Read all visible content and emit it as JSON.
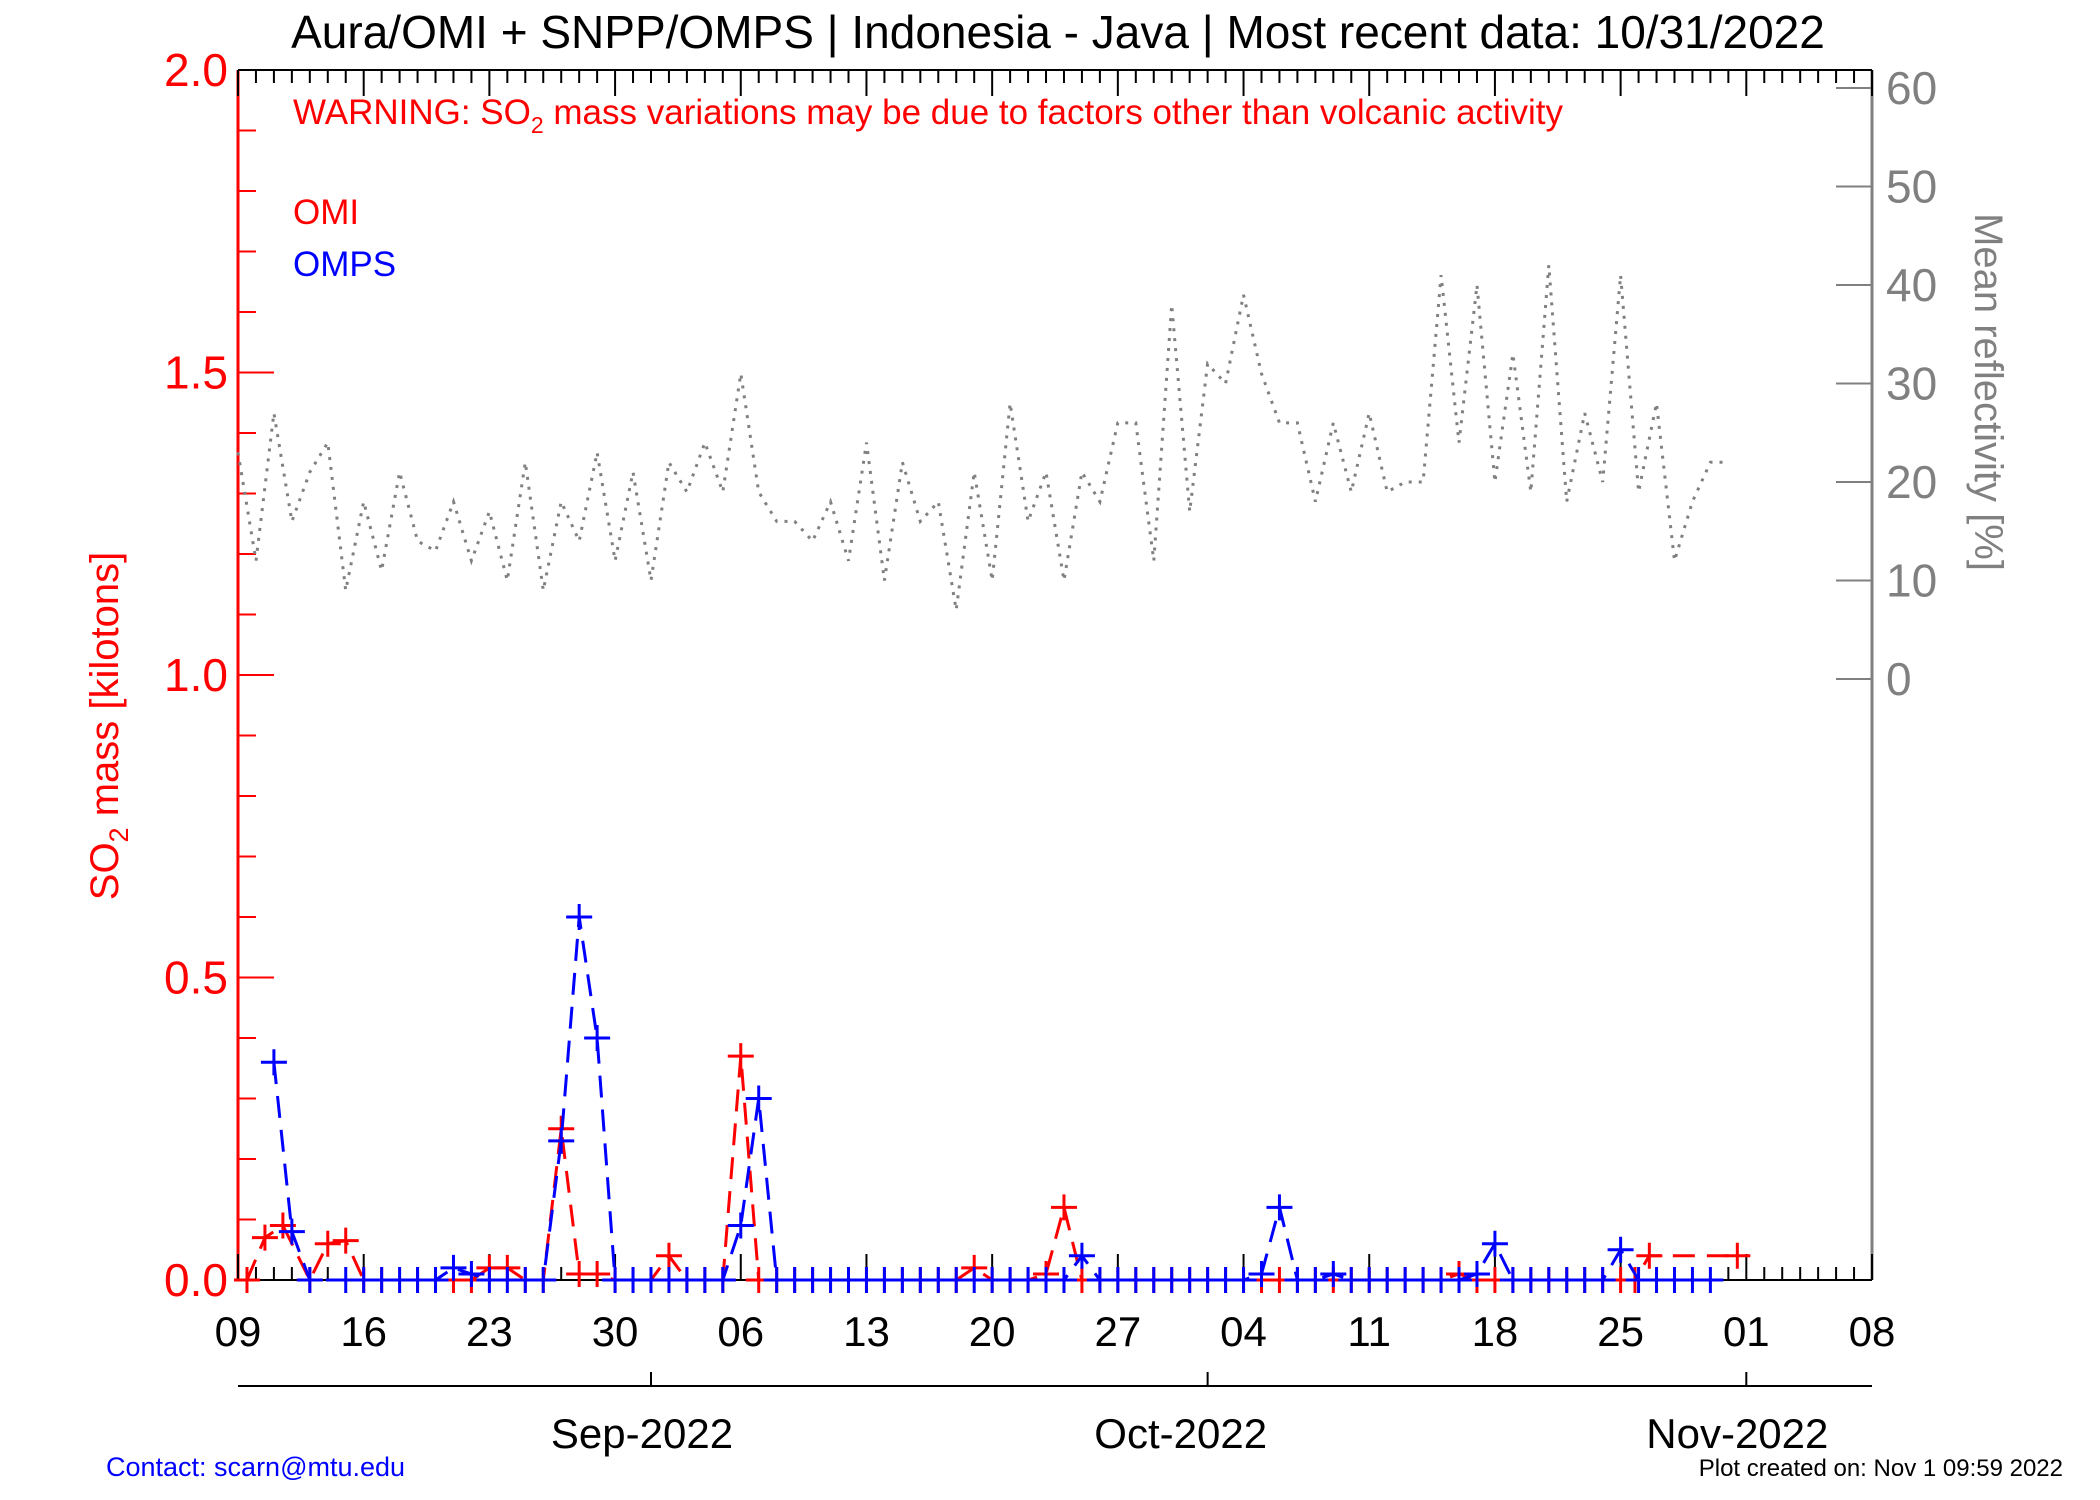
{
  "chart_data": {
    "type": "line",
    "title": "Aura/OMI + SNPP/OMPS | Indonesia - Java | Most recent data: 10/31/2022",
    "warning": "WARNING: SO2 mass variations may be due to factors other than volcanic activity",
    "warning_parts": {
      "pre": "WARNING: SO",
      "sub": "2",
      "post": " mass variations may be due to factors other than volcanic activity"
    },
    "ylabel": "SO2 mass [kilotons]",
    "ylabel_parts": {
      "pre": "SO",
      "sub": "2",
      "post": " mass [kilotons]"
    },
    "y2label": "Mean reflectivity [%]",
    "legend": [
      {
        "name": "OMI",
        "color": "#ff0000"
      },
      {
        "name": "OMPS",
        "color": "#0000ff"
      }
    ],
    "ylim": [
      0,
      2.0
    ],
    "y_ticks": [
      "0.0",
      "0.5",
      "1.0",
      "1.5",
      "2.0"
    ],
    "y_tick_values": [
      0,
      0.5,
      1.0,
      1.5,
      2.0
    ],
    "y2lim": [
      0,
      60
    ],
    "y2_ticks": [
      "0",
      "10",
      "20",
      "30",
      "40",
      "50",
      "60"
    ],
    "y2_tick_values": [
      0,
      10,
      20,
      30,
      40,
      50,
      60
    ],
    "xlim": [
      "2022-08-09",
      "2022-11-08"
    ],
    "x_tick_labels": [
      "09",
      "16",
      "23",
      "30",
      "06",
      "13",
      "20",
      "27",
      "04",
      "11",
      "18",
      "25",
      "01",
      "08"
    ],
    "x_tick_days": [
      0,
      7,
      14,
      21,
      28,
      35,
      42,
      49,
      56,
      63,
      70,
      77,
      84,
      91
    ],
    "month_labels": [
      "Sep-2022",
      "Oct-2022",
      "Nov-2022"
    ],
    "month_days": [
      22.5,
      52.5,
      83.5
    ],
    "series": [
      {
        "name": "OMI",
        "color": "#ff0000",
        "style": "dashed",
        "marker": "+",
        "x": [
          0.5,
          1.5,
          2.5,
          4,
          5,
          6,
          7,
          8,
          10,
          11,
          12,
          13,
          14,
          15,
          16,
          17,
          18,
          19,
          20,
          21,
          22,
          23,
          24,
          25,
          26,
          27,
          28,
          29,
          30,
          31,
          32,
          33,
          34,
          35,
          36,
          37,
          38,
          39,
          40,
          41,
          42,
          43,
          44,
          45,
          46,
          47,
          48,
          49,
          50,
          51,
          52,
          53,
          54,
          55,
          56,
          57,
          58,
          59,
          60,
          61,
          62,
          63,
          64,
          65,
          66,
          67,
          68,
          69,
          70,
          71,
          72,
          73,
          74,
          75,
          76,
          77,
          77.8,
          78.6,
          83.5
        ],
        "y": [
          0.0,
          0.07,
          0.09,
          0.0,
          0.06,
          0.065,
          0.0,
          0.0,
          0.0,
          0.0,
          0.0,
          0.0,
          0.02,
          0.02,
          0.0,
          0.0,
          0.25,
          0.01,
          0.01,
          0.0,
          0.0,
          0.0,
          0.04,
          0.0,
          0.0,
          0.0,
          0.37,
          0.0,
          0.0,
          0.0,
          0.0,
          0.0,
          0.0,
          0.0,
          0.0,
          0.0,
          0.0,
          0.0,
          0.0,
          0.02,
          0.0,
          0.0,
          0.0,
          0.01,
          0.12,
          0.0,
          0.0,
          0.0,
          0.0,
          0.0,
          0.0,
          0.0,
          0.0,
          0.0,
          0.0,
          0.0,
          0.0,
          0.0,
          0.0,
          0.0,
          0.0,
          0.0,
          0.0,
          0.0,
          0.0,
          0.0,
          0.01,
          0.0,
          0.0,
          0.0,
          0.0,
          0.0,
          0.0,
          0.0,
          0.0,
          0.0,
          0.0,
          0.04,
          0.04
        ]
      },
      {
        "name": "OMPS",
        "color": "#0000ff",
        "style": "dashed",
        "marker": "+",
        "x": [
          2,
          3,
          4,
          6,
          7,
          8,
          9,
          10,
          11,
          12,
          13,
          14,
          15,
          16,
          17,
          18,
          19,
          20,
          21,
          22,
          23,
          24,
          25,
          26,
          27,
          28,
          29,
          30,
          31,
          32,
          33,
          34,
          35,
          36,
          37,
          38,
          39,
          40,
          41,
          42,
          43,
          44,
          45,
          46,
          47,
          48,
          49,
          50,
          51,
          52,
          53,
          54,
          55,
          56,
          57,
          58,
          59,
          60,
          61,
          62,
          63,
          64,
          65,
          66,
          67,
          68,
          69,
          70,
          71,
          72,
          73,
          74,
          75,
          76,
          77,
          78,
          79,
          80,
          81,
          82
        ],
        "y": [
          0.36,
          0.08,
          0.0,
          0.0,
          0.0,
          0.0,
          0.0,
          0.0,
          0.0,
          0.02,
          0.01,
          0.0,
          0.0,
          0.0,
          0.0,
          0.23,
          0.6,
          0.4,
          0.0,
          0.0,
          0.0,
          0.0,
          0.0,
          0.0,
          0.0,
          0.09,
          0.3,
          0.0,
          0.0,
          0.0,
          0.0,
          0.0,
          0.0,
          0.0,
          0.0,
          0.0,
          0.0,
          0.0,
          0.0,
          0.0,
          0.0,
          0.0,
          0.0,
          0.0,
          0.04,
          0.0,
          0.0,
          0.0,
          0.0,
          0.0,
          0.0,
          0.0,
          0.0,
          0.0,
          0.01,
          0.12,
          0.0,
          0.0,
          0.01,
          0.0,
          0.0,
          0.0,
          0.0,
          0.0,
          0.0,
          0.0,
          0.01,
          0.06,
          0.0,
          0.0,
          0.0,
          0.0,
          0.0,
          0.0,
          0.05,
          0.0,
          0.0,
          0.0,
          0.0,
          0.0
        ]
      },
      {
        "name": "Mean reflectivity",
        "axis": "right",
        "color": "#808080",
        "style": "dotted",
        "x": [
          0,
          1,
          2,
          3,
          4,
          5,
          6,
          7,
          8,
          9,
          10,
          11,
          12,
          13,
          14,
          15,
          16,
          17,
          18,
          19,
          20,
          21,
          22,
          23,
          24,
          25,
          26,
          27,
          28,
          29,
          30,
          31,
          32,
          33,
          34,
          35,
          36,
          37,
          38,
          39,
          40,
          41,
          42,
          43,
          44,
          45,
          46,
          47,
          48,
          49,
          50,
          51,
          52,
          53,
          54,
          55,
          56,
          57,
          58,
          59,
          60,
          61,
          62,
          63,
          64,
          65,
          66,
          67,
          68,
          69,
          70,
          71,
          72,
          73,
          74,
          75,
          76,
          77,
          78,
          79,
          80,
          81,
          82,
          83
        ],
        "y": [
          23,
          12,
          27,
          16,
          21,
          24,
          9,
          18,
          11,
          21,
          14,
          13,
          18,
          12,
          17,
          10,
          22,
          9,
          18,
          14,
          23,
          12,
          21,
          10,
          22,
          19,
          24,
          19,
          31,
          19,
          16,
          16,
          14,
          18,
          12,
          24,
          10,
          22,
          16,
          18,
          7,
          21,
          10,
          28,
          16,
          21,
          10,
          21,
          18,
          26,
          26,
          12,
          38,
          17,
          32,
          30,
          39,
          31,
          26,
          26,
          18,
          26,
          19,
          27,
          19,
          20,
          20,
          41,
          24,
          40,
          20,
          33,
          19,
          42,
          18,
          27,
          20,
          41,
          19,
          28,
          12,
          18,
          22,
          22
        ]
      }
    ],
    "grid": false
  },
  "footer": {
    "contact": "Contact: scarn@mtu.edu",
    "created": "Plot created on: Nov  1 09:59 2022"
  }
}
